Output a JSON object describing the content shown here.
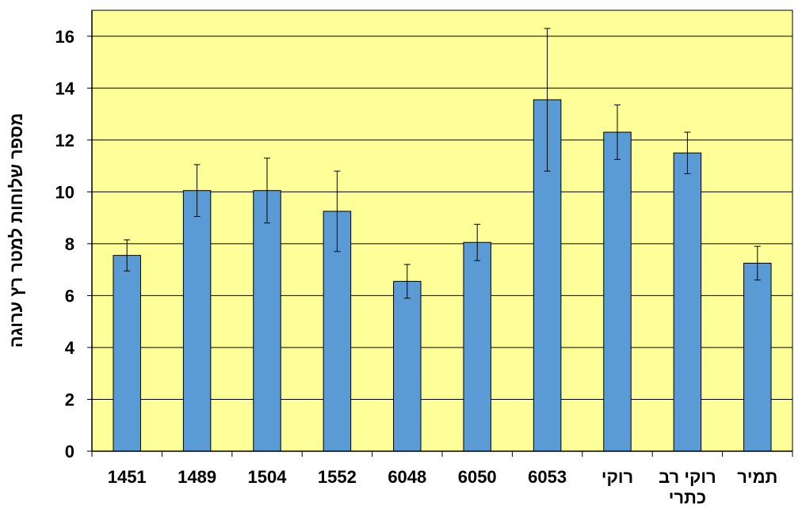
{
  "chart_data": {
    "type": "bar",
    "title": "",
    "xlabel": "",
    "ylabel": "מספר שלוחות למטר רץ ערוגה",
    "categories": [
      "1451",
      "1489",
      "1504",
      "1552",
      "6048",
      "6050",
      "6053",
      "רוקי",
      "רוקי רב כתרי",
      "תמיר"
    ],
    "category_lines": [
      [
        "1451"
      ],
      [
        "1489"
      ],
      [
        "1504"
      ],
      [
        "1552"
      ],
      [
        "6048"
      ],
      [
        "6050"
      ],
      [
        "6053"
      ],
      [
        "רוקי"
      ],
      [
        "רוקי רב",
        "כתרי"
      ],
      [
        "תמיר"
      ]
    ],
    "values": [
      7.55,
      10.05,
      10.05,
      9.25,
      6.55,
      8.05,
      13.55,
      12.3,
      11.5,
      7.25
    ],
    "error": [
      0.6,
      1.0,
      1.25,
      1.55,
      0.65,
      0.7,
      2.75,
      1.05,
      0.8,
      0.65
    ],
    "ylim": [
      0,
      17
    ],
    "yticks": [
      0,
      2,
      4,
      6,
      8,
      10,
      12,
      14,
      16
    ],
    "grid": true,
    "legend": "none",
    "colors": {
      "plot_background": "#FFFF99",
      "bar_fill": "#5B9BD5",
      "bar_stroke": "#000000",
      "gridline": "#000000"
    }
  }
}
